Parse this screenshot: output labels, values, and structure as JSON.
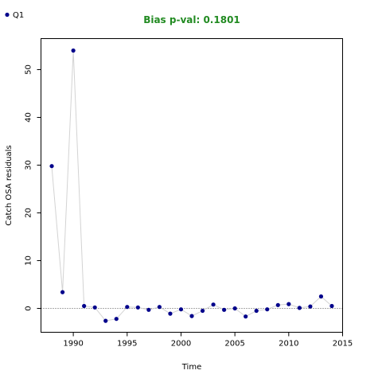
{
  "chart_data": {
    "type": "line",
    "title": "Bias p-val: 0.1801",
    "title_color": "#228B22",
    "xlabel": "Time",
    "ylabel": "Catch OSA residuals",
    "xlim": [
      1987,
      2015
    ],
    "ylim": [
      -5,
      56.5
    ],
    "x_ticks": [
      1990,
      1995,
      2000,
      2005,
      2010,
      2015
    ],
    "y_ticks": [
      0,
      10,
      20,
      30,
      40,
      50
    ],
    "reference_line": 0,
    "grid": false,
    "legend_position": "top-left",
    "series": [
      {
        "name": "Q1",
        "color": "#00008B",
        "line_color": "#D3D3D3",
        "x": [
          1988,
          1989,
          1990,
          1991,
          1992,
          1993,
          1994,
          1995,
          1996,
          1997,
          1998,
          1999,
          2000,
          2001,
          2002,
          2003,
          2004,
          2005,
          2006,
          2007,
          2008,
          2009,
          2010,
          2011,
          2012,
          2013,
          2014
        ],
        "y": [
          29.8,
          3.4,
          54.0,
          0.5,
          0.2,
          -2.6,
          -2.2,
          0.3,
          0.2,
          -0.3,
          0.3,
          -1.1,
          -0.2,
          -1.6,
          -0.5,
          0.8,
          -0.3,
          0.0,
          -1.7,
          -0.5,
          -0.2,
          0.7,
          0.9,
          0.1,
          0.4,
          2.5,
          0.5
        ]
      }
    ]
  }
}
